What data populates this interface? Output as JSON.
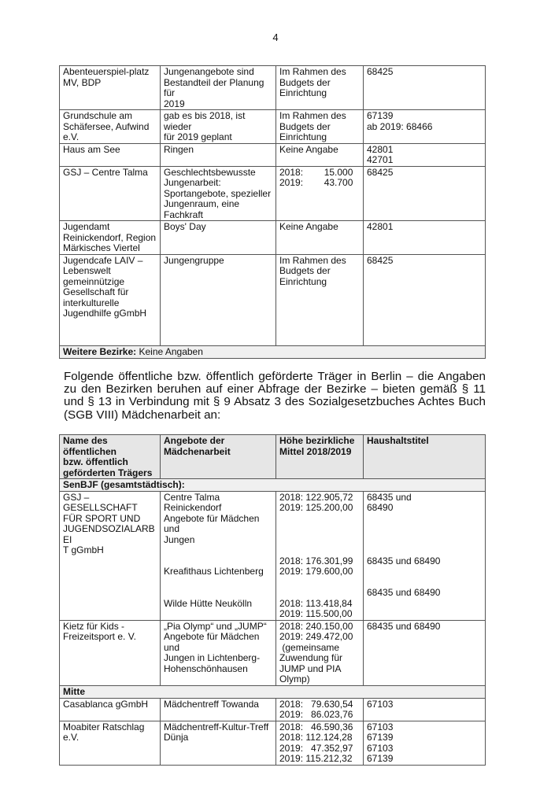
{
  "page_number": "4",
  "table1": {
    "rows": [
      [
        "Abenteuerspiel-platz\nMV, BDP",
        "Jungenangebote sind\nBestandteil der Planung für\n2019",
        "Im Rahmen des\nBudgets der\nEinrichtung",
        "68425"
      ],
      [
        "Grundschule am\nSchäfersee, Aufwind\ne.V.",
        "gab es bis 2018, ist wieder\nfür 2019 geplant",
        "Im Rahmen des\nBudgets der\nEinrichtung",
        "67139\nab 2019: 68466"
      ],
      [
        "Haus am See",
        "Ringen",
        "Keine Angabe",
        "42801\n42701"
      ],
      [
        "GSJ – Centre Talma",
        "Geschlechtsbewusste\nJungenarbeit:\nSportangebote, spezieller\nJungenraum, eine Fachkraft",
        "2018:        15.000\n2019:        43.700",
        "68425"
      ],
      [
        "Jugendamt\nReinickendorf, Region\nMärkisches Viertel",
        "Boys' Day",
        "Keine Angabe",
        "42801"
      ],
      [
        "Jugendcafe LAIV –\nLebenswelt\ngemeinnützige\nGesellschaft für\ninterkulturelle\nJugendhilfe gGmbH",
        "Jungengruppe",
        "Im Rahmen des\nBudgets der\nEinrichtung",
        "68425"
      ]
    ],
    "footer_label": "Weitere Bezirke:",
    "footer_value": " Keine Angaben"
  },
  "paragraph": "Folgende öffentliche bzw. öffentlich geförderte Träger in Berlin – die Angaben zu den Bezirken beruhen auf einer Abfrage der Bezirke – bieten gemäß § 11 und § 13 in Verbindung mit § 9 Absatz 3 des Sozialgesetzbuches Achtes Buch (SGB VIII) Mädchenarbeit an:",
  "table2": {
    "headers": [
      "Name des öffentlichen\nbzw. öffentlich\ngeförderten Trägers",
      "Angebote der\nMädchenarbeit",
      "Höhe bezirkliche\nMittel 2018/2019",
      "Haushaltstitel"
    ],
    "section1": "SenBJF (gesamtstädtisch):",
    "rows1": [
      [
        "GSJ – GESELLSCHAFT\nFÜR SPORT UND\nJUGENDSOZIALARBEI\nT gGmbH",
        "Centre Talma\nReinickendorf\nAngebote für Mädchen und\nJungen\n \n \nKreafithaus Lichtenberg\n \n \nWilde Hütte Neukölln",
        "2018: 122.905,72\n2019: 125.200,00\n \n \n \n \n2018: 176.301,99\n2019: 179.600,00\n \n \n2018: 113.418,84\n2019: 115.500,00",
        "68435 und\n68490\n \n \n \n \n68435 und 68490\n \n \n68435 und 68490"
      ],
      [
        "Kietz für Kids -\nFreizeitsport e. V.",
        "„Pia Olymp“ und „JUMP“\nAngebote für Mädchen und\nJungen in Lichtenberg-\nHohenschönhausen",
        "2018: 240.150,00\n2019: 249.472,00\n (gemeinsame\nZuwendung für\nJUMP und PIA\nOlymp)",
        "68435 und 68490"
      ]
    ],
    "section2": "Mitte",
    "rows2": [
      [
        "Casablanca gGmbH",
        "Mädchentreff Towanda",
        "2018:   79.630,54\n2019:   86.023,76",
        "67103"
      ],
      [
        "Moabiter Ratschlag e.V.",
        "Mädchentreff-Kultur-Treff\nDünja",
        "2018:   46.590,36\n2018: 112.124,28\n2019:   47.352,97\n2019: 115.212,32",
        "67103\n67139\n67103\n67139"
      ]
    ]
  }
}
